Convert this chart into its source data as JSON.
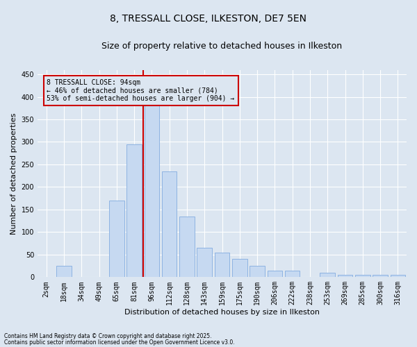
{
  "title_line1": "8, TRESSALL CLOSE, ILKESTON, DE7 5EN",
  "title_line2": "Size of property relative to detached houses in Ilkeston",
  "xlabel": "Distribution of detached houses by size in Ilkeston",
  "ylabel": "Number of detached properties",
  "annotation_line1": "8 TRESSALL CLOSE: 94sqm",
  "annotation_line2": "← 46% of detached houses are smaller (784)",
  "annotation_line3": "53% of semi-detached houses are larger (904) →",
  "footnote1": "Contains HM Land Registry data © Crown copyright and database right 2025.",
  "footnote2": "Contains public sector information licensed under the Open Government Licence v3.0.",
  "bar_labels": [
    "2sqm",
    "18sqm",
    "34sqm",
    "49sqm",
    "65sqm",
    "81sqm",
    "96sqm",
    "112sqm",
    "128sqm",
    "143sqm",
    "159sqm",
    "175sqm",
    "190sqm",
    "206sqm",
    "222sqm",
    "238sqm",
    "253sqm",
    "269sqm",
    "285sqm",
    "300sqm",
    "316sqm"
  ],
  "bar_values": [
    0,
    25,
    0,
    0,
    170,
    295,
    385,
    235,
    135,
    65,
    55,
    40,
    25,
    15,
    15,
    0,
    10,
    5,
    5,
    5,
    5
  ],
  "bar_color": "#c6d9f1",
  "bar_edge_color": "#8db3e2",
  "vline_color": "#cc0000",
  "background_color": "#dce6f1",
  "ylim": [
    0,
    460
  ],
  "yticks": [
    0,
    50,
    100,
    150,
    200,
    250,
    300,
    350,
    400,
    450
  ],
  "box_color": "#cc0000",
  "grid_color": "#ffffff",
  "title_fontsize": 10,
  "subtitle_fontsize": 9,
  "ylabel_fontsize": 8,
  "xlabel_fontsize": 8,
  "tick_fontsize": 7,
  "annot_fontsize": 7,
  "footnote_fontsize": 5.5
}
